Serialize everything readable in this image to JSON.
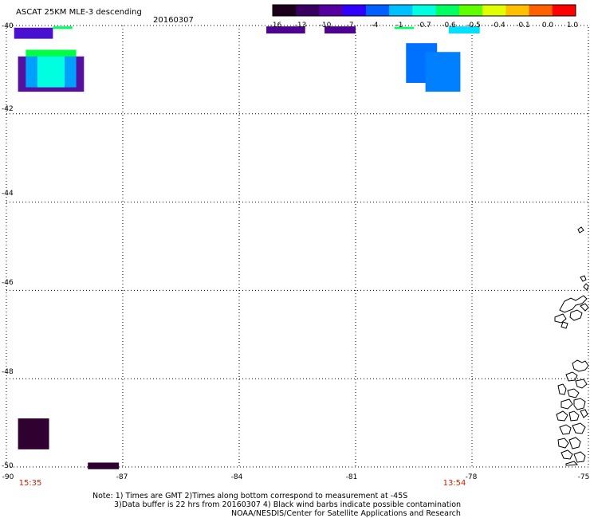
{
  "header": {
    "title": "ASCAT 25KM MLE-3 descending",
    "date": "20160307"
  },
  "colorbar": {
    "labels": [
      "-16",
      "-13",
      "-10",
      "-7",
      "-4",
      "-1",
      "-0.7",
      "-0.6",
      "-0.5",
      "-0.4",
      "-0.1",
      "0.0",
      "1.0"
    ],
    "colors": [
      "#1a001a",
      "#3a0060",
      "#5500a0",
      "#3000ff",
      "#0060ff",
      "#00c0ff",
      "#00ffe0",
      "#00ff60",
      "#60ff00",
      "#e0ff00",
      "#ffc000",
      "#ff6000",
      "#ff0000"
    ]
  },
  "axes": {
    "lat_labels": [
      "-40",
      "-42",
      "-44",
      "-46",
      "-48",
      "-50"
    ],
    "lon_labels": [
      "-90",
      "-87",
      "-84",
      "-81",
      "-78",
      "-75"
    ]
  },
  "time_labels": [
    "15:35",
    "13:54"
  ],
  "footer": {
    "note_line1": "Note: 1) Times are GMT 2)Times along bottom correspond to measurement at -45S",
    "note_line2": "3)Data buffer is 22 hrs from 20160307 4) Black wind barbs indicate possible contamination",
    "credit": "NOAA/NESDIS/Center for Satellite Applications and Research"
  },
  "map_data": {
    "lon_range": [
      -90,
      -75
    ],
    "lat_range": [
      -50,
      -40
    ],
    "swath_cells": [
      {
        "lon0": -89.8,
        "lon1": -88.8,
        "lat0": -40.3,
        "lat1": -40.05,
        "color": "#4a10d0"
      },
      {
        "lon0": -88.8,
        "lon1": -88.3,
        "lat0": -40.08,
        "lat1": -40.02,
        "color": "#00ff60"
      },
      {
        "lon0": -89.7,
        "lon1": -88.0,
        "lat0": -41.5,
        "lat1": -40.7,
        "color": "#5510a0"
      },
      {
        "lon0": -89.5,
        "lon1": -88.2,
        "lat0": -40.7,
        "lat1": -40.55,
        "color": "#00ff40"
      },
      {
        "lon0": -89.5,
        "lon1": -88.2,
        "lat0": -41.4,
        "lat1": -40.7,
        "color": "#00a0ff"
      },
      {
        "lon0": -89.2,
        "lon1": -88.5,
        "lat0": -41.4,
        "lat1": -40.7,
        "color": "#00ffe0"
      },
      {
        "lon0": -83.3,
        "lon1": -82.3,
        "lat0": -40.18,
        "lat1": -40.02,
        "color": "#4e0090"
      },
      {
        "lon0": -81.8,
        "lon1": -81.0,
        "lat0": -40.18,
        "lat1": -40.02,
        "color": "#4e0090"
      },
      {
        "lon0": -79.7,
        "lon1": -78.9,
        "lat0": -41.3,
        "lat1": -40.4,
        "color": "#0070ff"
      },
      {
        "lon0": -79.2,
        "lon1": -78.3,
        "lat0": -41.5,
        "lat1": -40.6,
        "color": "#0080ff"
      },
      {
        "lon0": -78.6,
        "lon1": -77.8,
        "lat0": -40.18,
        "lat1": -40.02,
        "color": "#00e0ff"
      },
      {
        "lon0": -80.0,
        "lon1": -79.5,
        "lat0": -40.08,
        "lat1": -40.03,
        "color": "#00ff60"
      },
      {
        "lon0": -89.7,
        "lon1": -88.9,
        "lat0": -49.6,
        "lat1": -48.9,
        "color": "#300030"
      },
      {
        "lon0": -87.9,
        "lon1": -87.1,
        "lat0": -50.05,
        "lat1": -49.9,
        "color": "#300030"
      }
    ]
  }
}
